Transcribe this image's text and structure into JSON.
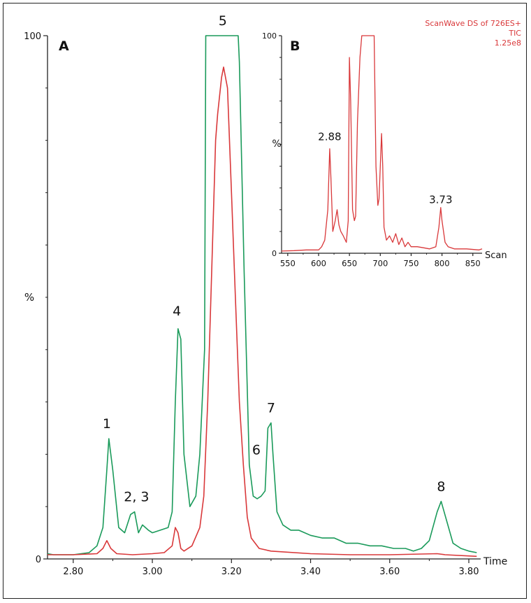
{
  "chart_data": [
    {
      "id": "A",
      "type": "line",
      "panel_label": "A",
      "xlabel": "Time",
      "ylabel": "%",
      "xlim": [
        2.735,
        3.83
      ],
      "ylim": [
        0,
        100
      ],
      "x_ticks": [
        2.8,
        3.0,
        3.2,
        3.4,
        3.6,
        3.8
      ],
      "x_tick_labels": [
        "2.80",
        "3.00",
        "3.20",
        "3.40",
        "3.60",
        "3.80"
      ],
      "y_ticks": [
        0,
        100
      ],
      "y_tick_labels": [
        "0",
        "100"
      ],
      "colors": {
        "green": "#1a9a5a",
        "red": "#d9383a"
      },
      "series": [
        {
          "name": "green",
          "color": "#1a9a5a",
          "x": [
            2.735,
            2.75,
            2.8,
            2.84,
            2.86,
            2.875,
            2.885,
            2.89,
            2.9,
            2.915,
            2.93,
            2.945,
            2.955,
            2.965,
            2.975,
            2.99,
            3.0,
            3.02,
            3.04,
            3.05,
            3.058,
            3.065,
            3.072,
            3.08,
            3.095,
            3.11,
            3.12,
            3.132,
            3.135,
            3.217,
            3.22,
            3.232,
            3.245,
            3.255,
            3.265,
            3.275,
            3.285,
            3.292,
            3.3,
            3.305,
            3.315,
            3.33,
            3.35,
            3.37,
            3.4,
            3.43,
            3.46,
            3.49,
            3.52,
            3.55,
            3.58,
            3.61,
            3.64,
            3.66,
            3.68,
            3.7,
            3.72,
            3.73,
            3.745,
            3.76,
            3.78,
            3.8,
            3.82
          ],
          "y": [
            1,
            0.8,
            0.8,
            1.2,
            2.5,
            6,
            17,
            23,
            17,
            6,
            5,
            8.5,
            9,
            5,
            6.5,
            5.5,
            5,
            5.5,
            6,
            9,
            30,
            44,
            42,
            20,
            10,
            12,
            20,
            40,
            100,
            100,
            95,
            55,
            18,
            12,
            11.5,
            12,
            13,
            25,
            26,
            20,
            9,
            6.5,
            5.5,
            5.5,
            4.5,
            4,
            4,
            3,
            3,
            2.5,
            2.5,
            2,
            2,
            1.5,
            2,
            3.5,
            9,
            11,
            7,
            3,
            2,
            1.5,
            1.2
          ]
        },
        {
          "name": "red",
          "color": "#d9383a",
          "x": [
            2.735,
            2.8,
            2.86,
            2.875,
            2.885,
            2.895,
            2.91,
            2.95,
            3.0,
            3.03,
            3.05,
            3.058,
            3.065,
            3.072,
            3.08,
            3.1,
            3.12,
            3.13,
            3.14,
            3.15,
            3.16,
            3.165,
            3.175,
            3.18,
            3.19,
            3.2,
            3.21,
            3.22,
            3.23,
            3.24,
            3.25,
            3.27,
            3.3,
            3.4,
            3.5,
            3.6,
            3.72,
            3.74,
            3.82
          ],
          "y": [
            0.8,
            0.8,
            1,
            2,
            3.5,
            2,
            1,
            0.8,
            1,
            1.2,
            2.5,
            6,
            5,
            2,
            1.5,
            2.5,
            6,
            12,
            30,
            55,
            80,
            85,
            92,
            94,
            90,
            70,
            50,
            30,
            18,
            8,
            4,
            2,
            1.5,
            1,
            0.8,
            0.8,
            1,
            0.8,
            0.5
          ]
        }
      ],
      "annotations": [
        {
          "text": "1",
          "x": 2.885,
          "y": 25
        },
        {
          "text": "2, 3",
          "x": 2.96,
          "y": 11
        },
        {
          "text": "4",
          "x": 3.062,
          "y": 46.5
        },
        {
          "text": "5",
          "x": 3.178,
          "y": 102
        },
        {
          "text": "6",
          "x": 3.263,
          "y": 20
        },
        {
          "text": "7",
          "x": 3.3,
          "y": 28
        },
        {
          "text": "8",
          "x": 3.73,
          "y": 13
        }
      ]
    },
    {
      "id": "B",
      "type": "line",
      "panel_label": "B",
      "xlabel": "Scan",
      "ylabel": "%",
      "xlim": [
        540,
        865
      ],
      "ylim": [
        0,
        100
      ],
      "x_ticks": [
        550,
        600,
        650,
        700,
        750,
        800,
        850
      ],
      "x_tick_labels": [
        "550",
        "600",
        "650",
        "700",
        "750",
        "800",
        "850"
      ],
      "y_ticks": [
        0,
        100
      ],
      "y_tick_labels": [
        "0",
        "100"
      ],
      "legend_text": [
        "ScanWave DS of  726ES+",
        "TIC",
        "1.25e8"
      ],
      "series": [
        {
          "name": "TIC",
          "color": "#d9383a",
          "x": [
            540,
            560,
            580,
            600,
            605,
            610,
            615,
            618,
            620,
            623,
            627,
            630,
            633,
            636,
            640,
            645,
            648,
            650,
            652,
            655,
            658,
            660,
            663,
            667,
            670,
            690,
            693,
            696,
            698,
            700,
            702,
            704,
            706,
            710,
            715,
            720,
            725,
            730,
            735,
            740,
            745,
            750,
            760,
            770,
            780,
            790,
            795,
            798,
            800,
            805,
            810,
            820,
            840,
            860,
            865
          ],
          "y": [
            1,
            1.2,
            1.5,
            1.5,
            3,
            6,
            20,
            48,
            35,
            10,
            15,
            20,
            13,
            10,
            8,
            5,
            15,
            90,
            70,
            20,
            15,
            17,
            60,
            90,
            100,
            100,
            40,
            22,
            25,
            40,
            55,
            40,
            12,
            6,
            8,
            5,
            9,
            4,
            7,
            3,
            5,
            3,
            3,
            2.5,
            2,
            3,
            12,
            21,
            15,
            5,
            3,
            2,
            2,
            1.5,
            2
          ]
        }
      ],
      "annotations": [
        {
          "text": "2.88",
          "x": 618,
          "y": 52
        },
        {
          "text": "3.73",
          "x": 798,
          "y": 23
        }
      ]
    }
  ]
}
